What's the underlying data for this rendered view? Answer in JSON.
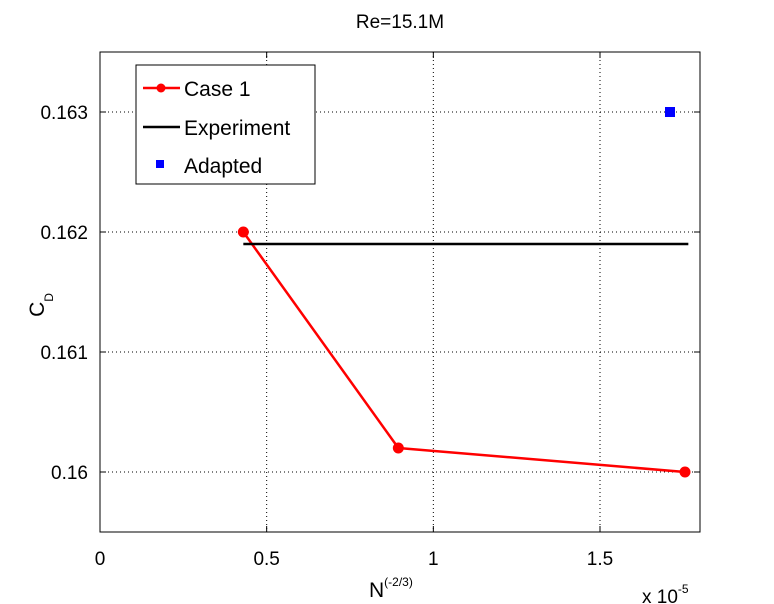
{
  "chart_data": {
    "type": "line",
    "title": "Re=15.1M",
    "xlabel": "N",
    "xlabel_exponent": "(-2/3)",
    "ylabel": "C",
    "ylabel_subscript": "D",
    "x_scale_note": "x 10",
    "x_scale_exponent": "-5",
    "xlim": [
      0,
      1.8
    ],
    "ylim": [
      0.1595,
      0.1635
    ],
    "xticks": [
      0,
      0.5,
      1,
      1.5
    ],
    "xtick_labels": [
      "0",
      "0.5",
      "1",
      "1.5"
    ],
    "yticks": [
      0.16,
      0.161,
      0.162,
      0.163
    ],
    "ytick_labels": [
      "0.16",
      "0.161",
      "0.162",
      "0.163"
    ],
    "grid": true,
    "legend_position": "top-left",
    "series": [
      {
        "name": "Case 1",
        "kind": "line-marker",
        "color": "#ff0000",
        "x": [
          0.43,
          0.895,
          1.755
        ],
        "y": [
          0.162,
          0.1602,
          0.16
        ]
      },
      {
        "name": "Experiment",
        "kind": "line",
        "color": "#000000",
        "x": [
          0.43,
          1.765
        ],
        "y": [
          0.1619,
          0.1619
        ]
      },
      {
        "name": "Adapted",
        "kind": "square-marker",
        "color": "#0000ff",
        "x": [
          1.71
        ],
        "y": [
          0.163
        ]
      }
    ]
  }
}
